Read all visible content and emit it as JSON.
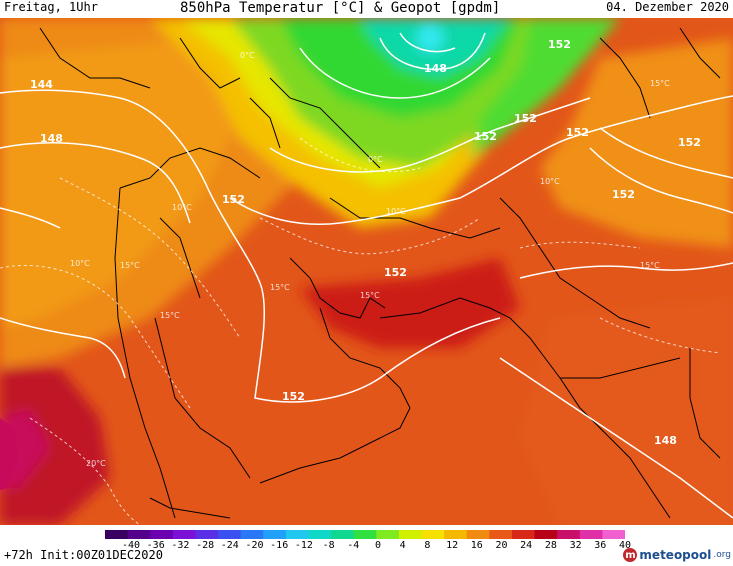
{
  "header": {
    "day": "Freitag, 1Uhr",
    "title": "850hPa Temperatur [°C] & Geopot [gpdm]",
    "date": "04. Dezember 2020"
  },
  "footer": {
    "run": "+72h Init:00Z01DEC2020"
  },
  "logo": {
    "mark": "m",
    "name": "meteopool",
    "tld": ".org",
    "color": "#1d4e8f"
  },
  "colorbar": {
    "ticks": [
      "-40",
      "-36",
      "-32",
      "-28",
      "-24",
      "-20",
      "-16",
      "-12",
      "-8",
      "-4",
      "0",
      "4",
      "8",
      "12",
      "16",
      "20",
      "24",
      "28",
      "32",
      "36",
      "40"
    ],
    "colors": [
      "#3a0060",
      "#55008a",
      "#6c00b0",
      "#7b10d6",
      "#5a30e6",
      "#3a50f0",
      "#2a78f5",
      "#20a0f8",
      "#20c8f0",
      "#10d8c8",
      "#10d890",
      "#30e040",
      "#80ea20",
      "#d0f000",
      "#f6e000",
      "#f4b800",
      "#f08a10",
      "#e85818",
      "#d82818",
      "#b80018",
      "#c8106a",
      "#e030a8",
      "#f060d0"
    ]
  },
  "contours": {
    "geopot_labels": [
      "152",
      "148",
      "144",
      "148",
      "152",
      "152",
      "152",
      "152",
      "152",
      "152",
      "152",
      "152",
      "148"
    ],
    "temp_labels": [
      "0°C",
      "0°C",
      "10°C",
      "10°C",
      "10°C",
      "15°C",
      "15°C",
      "15°C",
      "15°C",
      "10°C",
      "15°C",
      "20°C",
      "15°C"
    ]
  }
}
